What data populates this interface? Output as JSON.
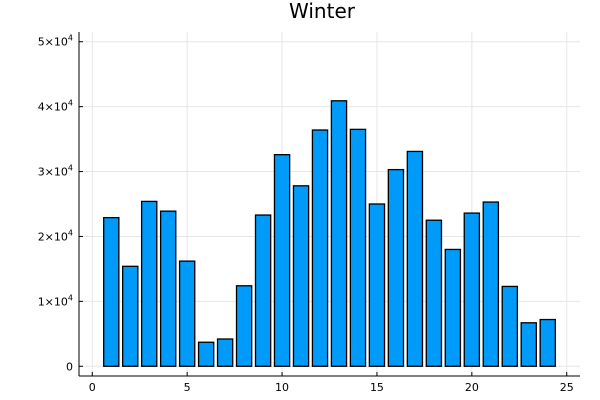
{
  "chart_data": {
    "type": "bar",
    "title": "Winter",
    "xlabel": "",
    "ylabel": "",
    "x": [
      1,
      2,
      3,
      4,
      5,
      6,
      7,
      8,
      9,
      10,
      11,
      12,
      13,
      14,
      15,
      16,
      17,
      18,
      19,
      20,
      21,
      22,
      23,
      24
    ],
    "values": [
      22900,
      15400,
      25400,
      23900,
      16200,
      3700,
      4200,
      12400,
      23300,
      32600,
      27800,
      36400,
      40900,
      36500,
      25000,
      30300,
      33100,
      22500,
      18000,
      23600,
      25300,
      12300,
      6700,
      7200
    ],
    "xlim": [
      -0.7,
      25.7
    ],
    "ylim": [
      -1500,
      51500
    ],
    "xticks": [
      0,
      5,
      10,
      15,
      20,
      25
    ],
    "xtick_labels": [
      "0",
      "5",
      "10",
      "15",
      "20",
      "25"
    ],
    "yticks": [
      0,
      10000,
      20000,
      30000,
      40000,
      50000
    ],
    "ytick_labels": [
      {
        "base": "0",
        "exp": ""
      },
      {
        "base": "1×10",
        "exp": "4"
      },
      {
        "base": "2×10",
        "exp": "4"
      },
      {
        "base": "3×10",
        "exp": "4"
      },
      {
        "base": "4×10",
        "exp": "4"
      },
      {
        "base": "5×10",
        "exp": "4"
      }
    ],
    "bar_color": "#009af9",
    "grid": true,
    "legend": "none"
  }
}
